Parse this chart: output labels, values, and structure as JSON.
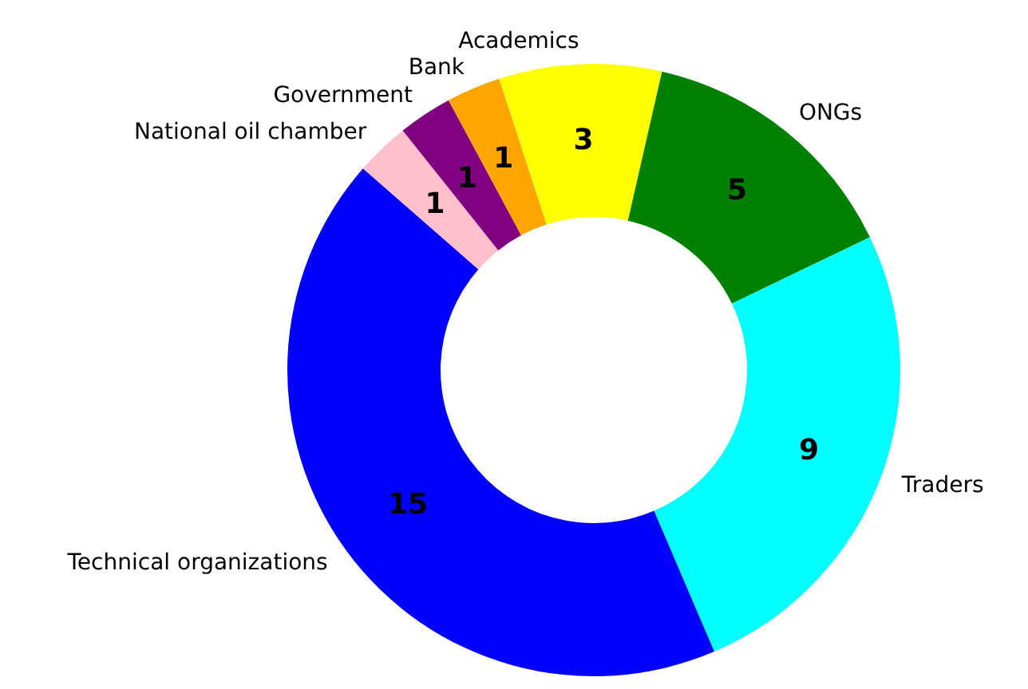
{
  "chart_data": {
    "type": "donut",
    "categories": [
      "Academics",
      "ONGs",
      "Traders",
      "Technical organizations",
      "National oil chamber",
      "Government",
      "Bank"
    ],
    "values": [
      3,
      5,
      9,
      15,
      1,
      1,
      1
    ],
    "colors": [
      "#ffff00",
      "#008000",
      "#00ffff",
      "#0000ff",
      "#ffc0cb",
      "#800080",
      "#ffa500"
    ],
    "data_labels": true
  }
}
